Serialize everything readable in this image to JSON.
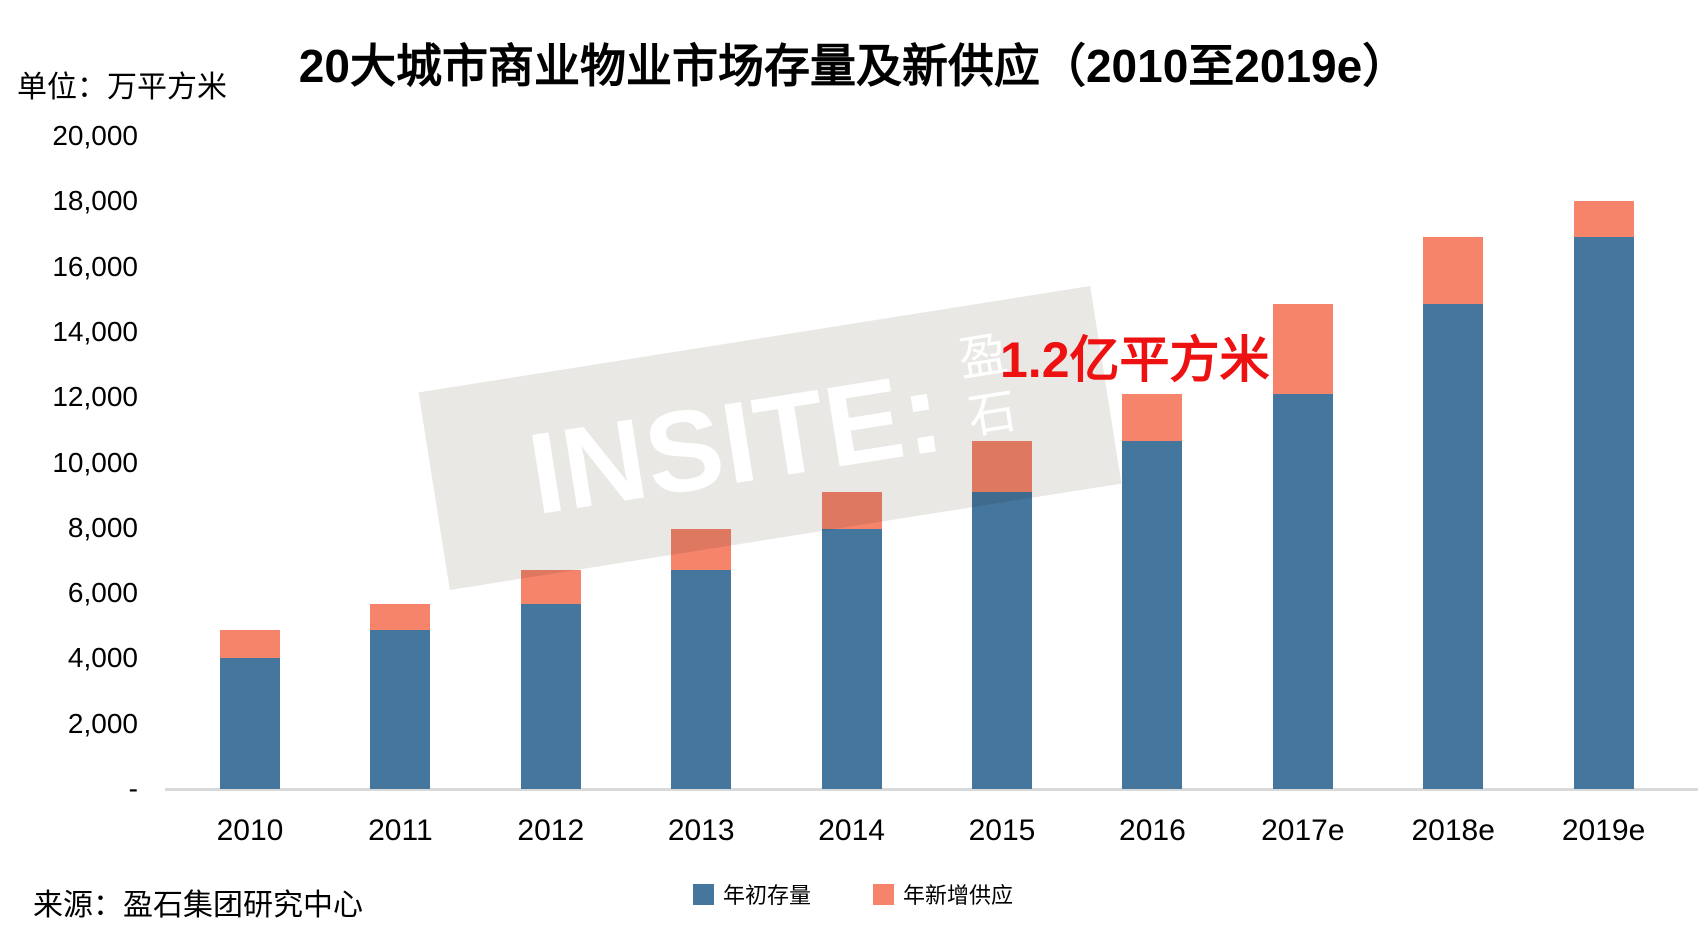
{
  "title": "20大城市商业物业市场存量及新供应（2010至2019e）",
  "unit_label": "单位：万平方米",
  "source": "来源：盈石集团研究中心",
  "annotation": {
    "text": "1.2亿平方米",
    "color": "#ED1111"
  },
  "watermark": {
    "brand": "INSITE:",
    "cjk": "盈石",
    "band_color": "#E9E8E5"
  },
  "colors": {
    "stock_blue": "#45769E",
    "supply_orange": "#F5846B",
    "annotation_red": "#ED1111",
    "watermark_grey": "#E9E8E5",
    "axis_line_grey": "#D9D9D9"
  },
  "chart_data": {
    "type": "bar",
    "stacked": true,
    "title": "20大城市商业物业市场存量及新供应（2010至2019e）",
    "ylabel": "单位：万平方米",
    "xlabel": "",
    "categories": [
      "2010",
      "2011",
      "2012",
      "2013",
      "2014",
      "2015",
      "2016",
      "2017e",
      "2018e",
      "2019e"
    ],
    "series": [
      {
        "name": "年初存量",
        "color": "#45769E",
        "values": [
          4000,
          4860,
          5660,
          6700,
          7970,
          9100,
          10660,
          12090,
          14850,
          16900
        ]
      },
      {
        "name": "年新增供应",
        "color": "#F5846B",
        "values": [
          860,
          800,
          1040,
          1270,
          1130,
          1560,
          1430,
          2760,
          2050,
          1100
        ]
      }
    ],
    "stack_totals": [
      4860,
      5660,
      6700,
      7970,
      9100,
      10660,
      12090,
      14850,
      16900,
      18000
    ],
    "ylim": [
      0,
      20000
    ],
    "ytick_step": 2000,
    "yticks": [
      {
        "value": 20000,
        "label": "20,000"
      },
      {
        "value": 18000,
        "label": "18,000"
      },
      {
        "value": 16000,
        "label": "16,000"
      },
      {
        "value": 14000,
        "label": "14,000"
      },
      {
        "value": 12000,
        "label": "12,000"
      },
      {
        "value": 10000,
        "label": "10,000"
      },
      {
        "value": 8000,
        "label": "8,000"
      },
      {
        "value": 6000,
        "label": "6,000"
      },
      {
        "value": 4000,
        "label": "4,000"
      },
      {
        "value": 2000,
        "label": "2,000"
      },
      {
        "value": 0,
        "label": "-"
      }
    ],
    "grid": false,
    "legend_position": "bottom-center",
    "annotations": [
      "1.2亿平方米"
    ]
  }
}
